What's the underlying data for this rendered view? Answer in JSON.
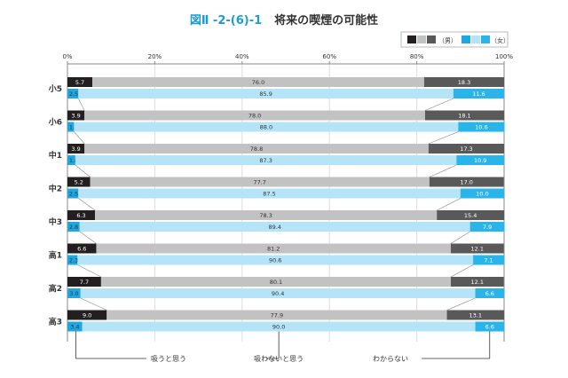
{
  "chart_data": {
    "type": "bar",
    "stacked": true,
    "orientation": "horizontal",
    "title_number": "図Ⅱ -2-(6)-1",
    "title": "将来の喫煙の可能性",
    "xlim": [
      0,
      100
    ],
    "x_ticks": [
      "0%",
      "20%",
      "40%",
      "60%",
      "80%",
      "100%"
    ],
    "grid": true,
    "legend": {
      "position": "top-right",
      "male": "（男）",
      "female": "（女）"
    },
    "categories": [
      "小5",
      "小6",
      "中1",
      "中2",
      "中3",
      "高1",
      "高2",
      "高3"
    ],
    "segment_labels": [
      "吸うと思う",
      "吸わないと思う",
      "わからない"
    ],
    "male": [
      [
        5.7,
        76.0,
        18.3
      ],
      [
        3.9,
        78.0,
        18.1
      ],
      [
        3.9,
        78.8,
        17.3
      ],
      [
        5.2,
        77.7,
        17.0
      ],
      [
        6.3,
        78.3,
        15.4
      ],
      [
        6.6,
        81.2,
        12.1
      ],
      [
        7.7,
        80.1,
        12.1
      ],
      [
        9.0,
        77.9,
        13.1
      ]
    ],
    "female": [
      [
        2.5,
        85.9,
        11.6
      ],
      [
        1.5,
        88.0,
        10.6
      ],
      [
        1.8,
        87.3,
        10.9
      ],
      [
        2.5,
        87.5,
        10.0
      ],
      [
        2.8,
        89.4,
        7.9
      ],
      [
        2.3,
        90.6,
        7.1
      ],
      [
        3.0,
        90.4,
        6.6
      ],
      [
        3.4,
        90.0,
        6.6
      ]
    ],
    "colors": {
      "male": [
        "#231f20",
        "#c2c2c2",
        "#595959"
      ],
      "female": [
        "#1ea7e0",
        "#b5e4f8",
        "#2ab5ea"
      ]
    }
  }
}
